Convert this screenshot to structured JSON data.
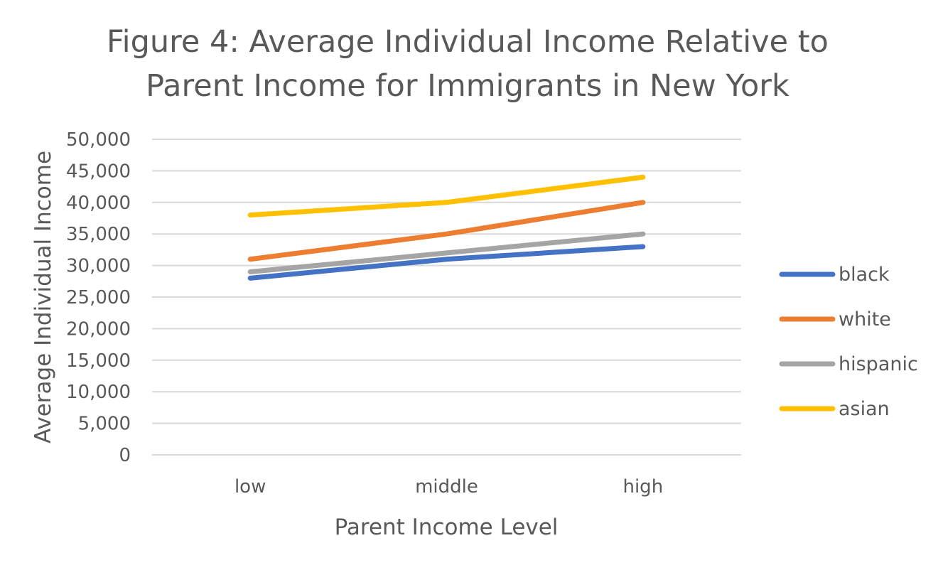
{
  "chart_data": {
    "type": "line",
    "title_lines": [
      "Figure 4: Average Individual Income Relative to",
      "Parent Income for Immigrants in New York"
    ],
    "xlabel": "Parent Income Level",
    "ylabel": "Average Individual Income",
    "categories": [
      "low",
      "middle",
      "high"
    ],
    "ylim": [
      0,
      50000
    ],
    "y_ticks": [
      0,
      5000,
      10000,
      15000,
      20000,
      25000,
      30000,
      35000,
      40000,
      45000,
      50000
    ],
    "y_tick_labels": [
      "0",
      "5,000",
      "10,000",
      "15,000",
      "20,000",
      "25,000",
      "30,000",
      "35,000",
      "40,000",
      "45,000",
      "50,000"
    ],
    "grid": true,
    "legend_position": "right",
    "series": [
      {
        "name": "black",
        "color": "#4472C4",
        "values": [
          28000,
          31000,
          33000
        ]
      },
      {
        "name": "white",
        "color": "#ED7D31",
        "values": [
          31000,
          35000,
          40000
        ]
      },
      {
        "name": "hispanic",
        "color": "#A5A5A5",
        "values": [
          29000,
          32000,
          35000
        ]
      },
      {
        "name": "asian",
        "color": "#FFC000",
        "values": [
          38000,
          40000,
          44000
        ]
      }
    ]
  }
}
